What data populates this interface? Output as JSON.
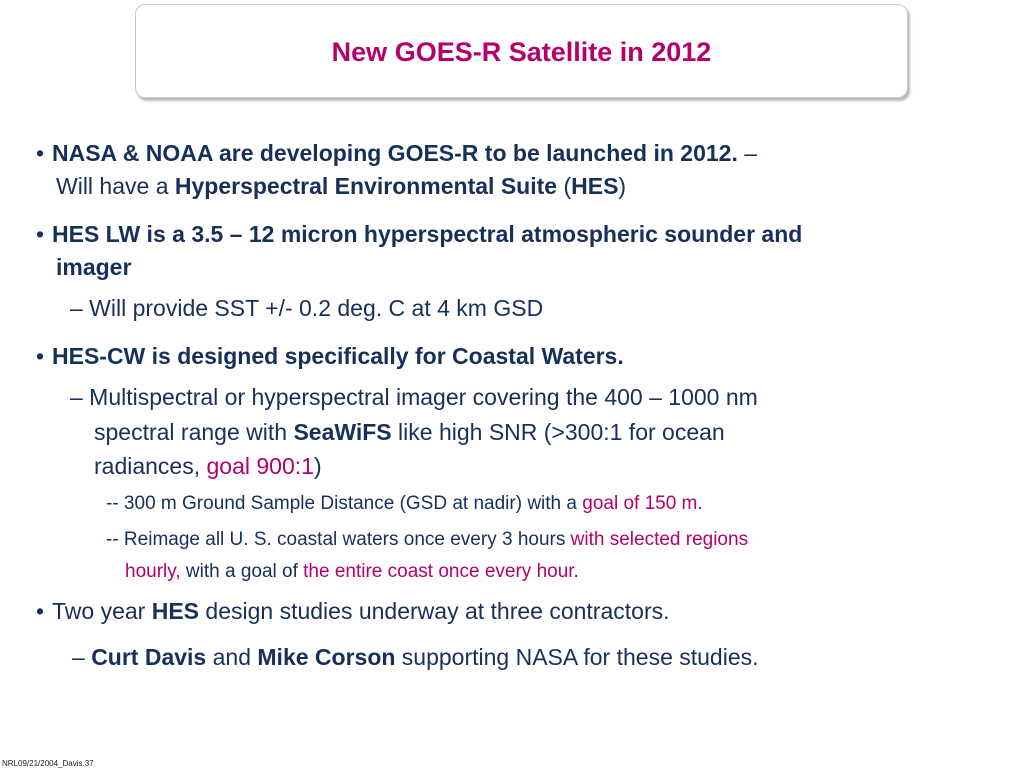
{
  "title": "New GOES-R Satellite in 2012",
  "bullets": {
    "b1": {
      "marker": "•",
      "bold": "NASA & NOAA are developing GOES-R to be launched in 2012.",
      "dash": " –",
      "line2_pre": "Will have a ",
      "line2_bold": "Hyperspectral Environmental Suite",
      "line2_mid": " (",
      "line2_bold2": "HES",
      "line2_post": ")"
    },
    "b2": {
      "marker": "•",
      "line1": "HES LW is a 3.5 – 12 micron hyperspectral atmospheric sounder and",
      "line2": "imager",
      "sub1": "–   Will provide SST +/- 0.2 deg. C at 4 km GSD"
    },
    "b3": {
      "marker": "•",
      "bold": "HES-CW is designed specifically for Coastal Waters.",
      "sub1_line1": "–   Multispectral or hyperspectral imager covering the 400 – 1000 nm",
      "sub1_line2_pre": "spectral range with ",
      "sub1_line2_bold": "SeaWiFS",
      "sub1_line2_post": " like high SNR (>300:1 for ocean",
      "sub1_line3_pre": "radiances, ",
      "sub1_line3_pink": "goal 900:1",
      "sub1_line3_post": ")",
      "subsub1_pre": "--  300 m Ground Sample Distance (GSD at nadir) with a ",
      "subsub1_pink": "goal of 150 m.",
      "subsub2_pre": "--  Reimage all U. S. coastal waters once every 3 hours ",
      "subsub2_pink": "with selected regions",
      "subsub2_line2_pink": "hourly,",
      "subsub2_line2_mid": " with a goal of ",
      "subsub2_line2_pink2": "the entire coast once every hour",
      "subsub2_line2_end": "."
    },
    "b4": {
      "marker": "•",
      "pre": "Two year ",
      "bold": "HES",
      "post": " design studies underway at three contractors.",
      "sub_dash": "–  ",
      "sub_bold1": "Curt Davis",
      "sub_mid": " and ",
      "sub_bold2": "Mike Corson",
      "sub_post": " supporting NASA for these studies."
    }
  },
  "footer": "NRL09/21/2004_Davis.37"
}
